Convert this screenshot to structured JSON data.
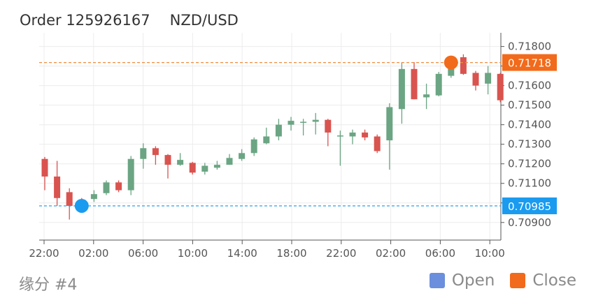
{
  "header": {
    "order_label": "Order 125926167",
    "symbol": "NZD/USD"
  },
  "footer": {
    "label": "缘分 #4"
  },
  "legend": [
    {
      "label": "Open",
      "color": "#6b8fdc"
    },
    {
      "label": "Close",
      "color": "#f26a1b"
    }
  ],
  "colors": {
    "up": "#6ba583",
    "down": "#d9534f",
    "open_line": "#2aa0ea",
    "close_line": "#f28c3c"
  },
  "chart_data": {
    "type": "candlestick",
    "ylim": [
      0.7081,
      0.7187
    ],
    "y_ticks": [
      "0.71800",
      "0.71700",
      "0.71600",
      "0.71500",
      "0.71400",
      "0.71300",
      "0.71200",
      "0.71100",
      "0.71000",
      "0.70900"
    ],
    "x_ticks": [
      "22:00",
      "02:00",
      "06:00",
      "10:00",
      "14:00",
      "18:00",
      "22:00",
      "02:00",
      "06:00",
      "10:00"
    ],
    "grid": true,
    "open_marker": {
      "price": 0.70985,
      "label": "0.70985",
      "color": "#1a9bf0"
    },
    "close_marker": {
      "price": 0.71718,
      "label": "0.71718",
      "color": "#f26a1b"
    },
    "candles": [
      [
        0.71225,
        0.71135,
        0.71235,
        0.71065
      ],
      [
        0.71135,
        0.71025,
        0.71215,
        0.70985
      ],
      [
        0.71055,
        0.70985,
        0.71075,
        0.70915
      ],
      [
        0.71005,
        0.70985,
        0.71025,
        0.7097
      ],
      [
        0.7102,
        0.71045,
        0.71065,
        0.71005
      ],
      [
        0.7105,
        0.71105,
        0.71115,
        0.7104
      ],
      [
        0.71105,
        0.71065,
        0.71115,
        0.71055
      ],
      [
        0.71065,
        0.71225,
        0.7124,
        0.7104
      ],
      [
        0.71225,
        0.7128,
        0.71305,
        0.71175
      ],
      [
        0.7128,
        0.71245,
        0.7129,
        0.71195
      ],
      [
        0.71245,
        0.71195,
        0.7125,
        0.71125
      ],
      [
        0.71195,
        0.7122,
        0.71255,
        0.7119
      ],
      [
        0.71205,
        0.71155,
        0.7121,
        0.71145
      ],
      [
        0.7116,
        0.7119,
        0.71205,
        0.71145
      ],
      [
        0.7118,
        0.71195,
        0.71215,
        0.7117
      ],
      [
        0.71195,
        0.7123,
        0.7125,
        0.71195
      ],
      [
        0.71225,
        0.71255,
        0.71275,
        0.71215
      ],
      [
        0.71255,
        0.71325,
        0.71335,
        0.7124
      ],
      [
        0.71305,
        0.7134,
        0.71385,
        0.713
      ],
      [
        0.7134,
        0.714,
        0.7143,
        0.7132
      ],
      [
        0.714,
        0.7142,
        0.7144,
        0.7137
      ],
      [
        0.7141,
        0.71415,
        0.7143,
        0.71345
      ],
      [
        0.71415,
        0.71425,
        0.7146,
        0.7135
      ],
      [
        0.71425,
        0.7136,
        0.7143,
        0.7129
      ],
      [
        0.7134,
        0.71345,
        0.7137,
        0.7119
      ],
      [
        0.7134,
        0.7136,
        0.71375,
        0.713
      ],
      [
        0.7136,
        0.71335,
        0.71375,
        0.7132
      ],
      [
        0.7134,
        0.71265,
        0.7135,
        0.71255
      ],
      [
        0.7132,
        0.7149,
        0.7151,
        0.7117
      ],
      [
        0.7148,
        0.71685,
        0.7172,
        0.71405
      ],
      [
        0.71685,
        0.7153,
        0.7172,
        0.7153
      ],
      [
        0.7154,
        0.71555,
        0.7161,
        0.7148
      ],
      [
        0.7155,
        0.7166,
        0.7167,
        0.71545
      ],
      [
        0.7165,
        0.7169,
        0.717,
        0.7164
      ],
      [
        0.71745,
        0.7166,
        0.7176,
        0.71655
      ],
      [
        0.71665,
        0.716,
        0.71675,
        0.71575
      ],
      [
        0.7161,
        0.71665,
        0.717,
        0.71555
      ],
      [
        0.7166,
        0.71525,
        0.71665,
        0.71515
      ]
    ]
  }
}
